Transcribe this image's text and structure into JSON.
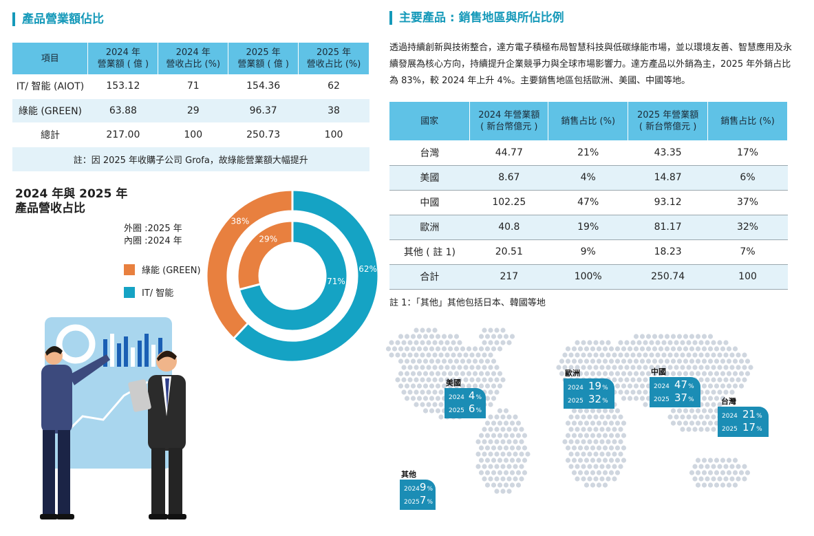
{
  "left": {
    "title": "產品營業額佔比",
    "table": {
      "headers": [
        "項目",
        "2024 年\n營業額 ( 億 )",
        "2024 年\n營收占比 (%)",
        "2025 年\n營業額 ( 億 )",
        "2025 年\n營收占比 (%)"
      ],
      "rows": [
        [
          "IT/ 智能 (AIOT)",
          "153.12",
          "71",
          "154.36",
          "62"
        ],
        [
          "綠能 (GREEN)",
          "63.88",
          "29",
          "96.37",
          "38"
        ],
        [
          "總計",
          "217.00",
          "100",
          "250.73",
          "100"
        ]
      ],
      "note": "註：因 2025 年收購子公司 Grofa，故綠能營業額大幅提升"
    },
    "donut_title_line1": "2024 年與 2025 年",
    "donut_title_line2": "產品營收占比",
    "ring_outer_note": "外圈 :2025 年",
    "ring_inner_note": "內圈 :2024 年",
    "legend": [
      {
        "label": "綠能 (GREEN)",
        "color": "#e8803f"
      },
      {
        "label": "IT/ 智能",
        "color": "#15a3c4"
      }
    ]
  },
  "right": {
    "title": "主要產品 : 銷售地區與所佔比例",
    "paragraph": "透過持續創新與技術整合，達方電子積極布局智慧科技與低碳綠能市場，並以環境友善、智慧應用及永續發展為核心方向，持續提升企業競爭力與全球市場影響力。達方產品以外銷為主，2025 年外銷占比為 83%，較 2024 年上升 4%。主要銷售地區包括歐洲、美國、中國等地。",
    "table": {
      "headers": [
        "國家",
        "2024 年營業額\n( 新台幣億元 )",
        "銷售占比 (%)",
        "2025 年營業額\n( 新台幣億元 )",
        "銷售占比 (%)"
      ],
      "rows": [
        [
          "台灣",
          "44.77",
          "21%",
          "43.35",
          "17%"
        ],
        [
          "美國",
          "8.67",
          "4%",
          "14.87",
          "6%"
        ],
        [
          "中國",
          "102.25",
          "47%",
          "93.12",
          "37%"
        ],
        [
          "歐洲",
          "40.8",
          "19%",
          "81.17",
          "32%"
        ],
        [
          "其他 ( 註 1)",
          "20.51",
          "9%",
          "18.23",
          "7%"
        ],
        [
          "合計",
          "217",
          "100%",
          "250.74",
          "100"
        ]
      ]
    },
    "footnote": "註 1：「其他」其他包括日本、韓國等地",
    "map": {
      "year_a": "2024",
      "year_b": "2025",
      "pct_symbol": "%",
      "regions": [
        {
          "name": "美國",
          "v2024": "4",
          "v2025": "6"
        },
        {
          "name": "歐洲",
          "v2024": "19",
          "v2025": "32"
        },
        {
          "name": "中國",
          "v2024": "47",
          "v2025": "37"
        },
        {
          "name": "台灣",
          "v2024": "21",
          "v2025": "17"
        },
        {
          "name": "其他",
          "v2024": "9",
          "v2025": "7"
        }
      ]
    }
  },
  "chart_data": {
    "type": "pie",
    "variant": "nested-donut",
    "categories": [
      "綠能 (GREEN)",
      "IT/ 智能"
    ],
    "series": [
      {
        "values": [
          38,
          62
        ],
        "labels": [
          "38%",
          "62%"
        ],
        "ring": "outer"
      },
      {
        "values": [
          29,
          71
        ],
        "labels": [
          "29%",
          "71%"
        ],
        "ring": "inner"
      }
    ],
    "colors": [
      "#e8803f",
      "#15a3c4"
    ],
    "legend_placement": "left"
  }
}
